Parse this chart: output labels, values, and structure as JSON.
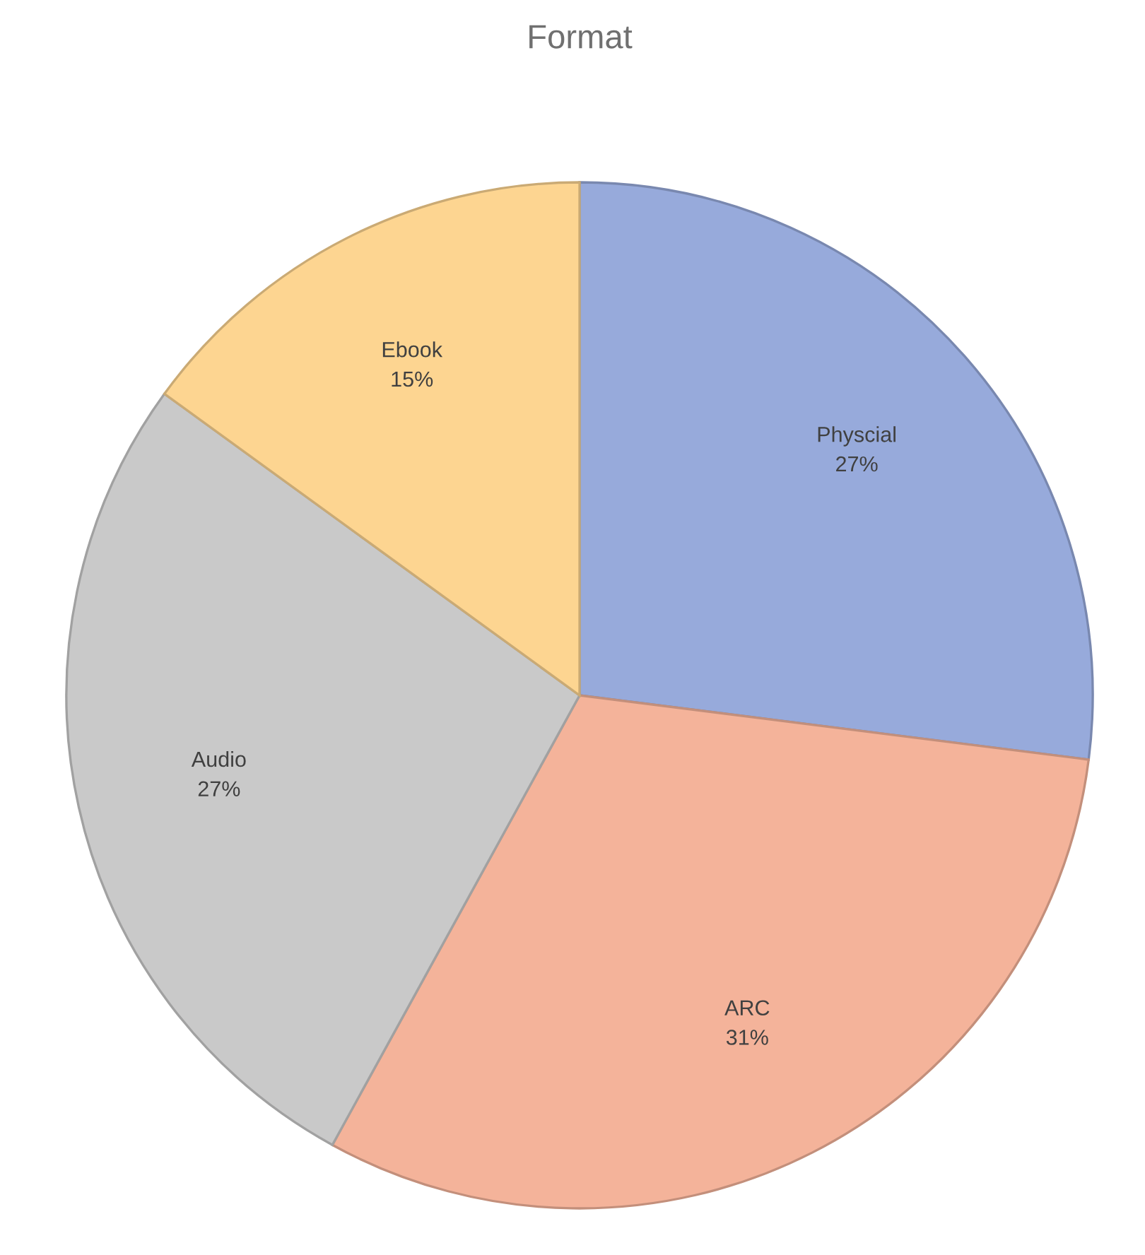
{
  "chart_data": {
    "type": "pie",
    "title": "Format",
    "categories": [
      "Physcial",
      "ARC",
      "Audio",
      "Ebook"
    ],
    "values": [
      27,
      31,
      27,
      15
    ],
    "value_labels": [
      "27%",
      "31%",
      "27%",
      "15%"
    ],
    "colors": [
      "#97aadb",
      "#f4b39a",
      "#c9c9c9",
      "#fdd591"
    ]
  }
}
